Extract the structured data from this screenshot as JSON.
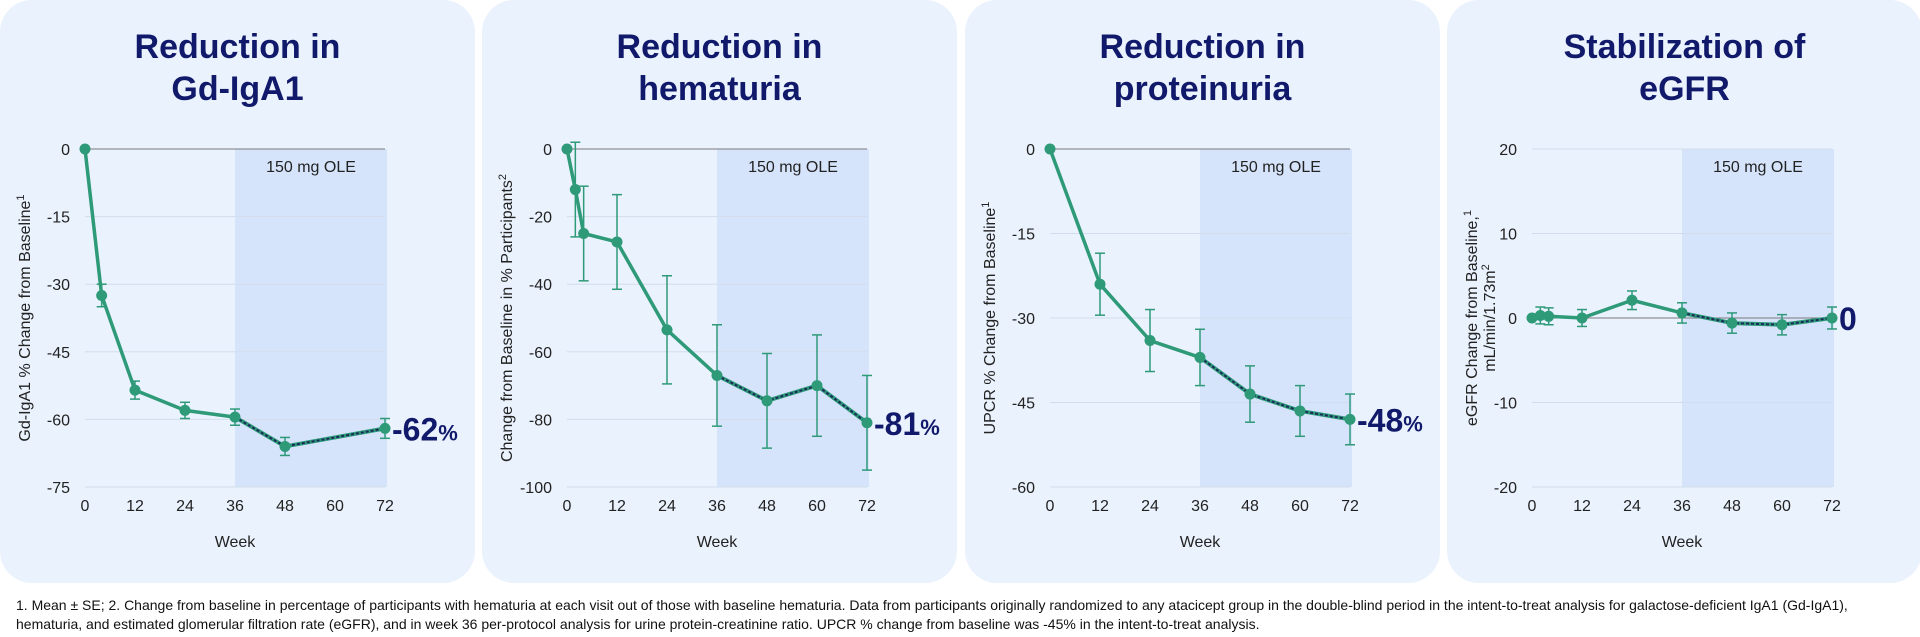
{
  "colors": {
    "line": "#2e9a78",
    "dashed": "#1a2b5c",
    "ole_shade": "#d6e4fb",
    "title": "#11196b",
    "panel_bg": "#eaf2fd"
  },
  "footnote": "1. Mean ± SE; 2. Change from baseline in percentage of participants with hematuria at each visit out of those with baseline hematuria. Data from participants originally randomized to any atacicept group in the double-blind period in the intent-to-treat analysis for galactose-deficient IgA1 (Gd-IgA1), hematuria, and estimated glomerular filtration rate (eGFR), and in week 36 per-protocol analysis for urine protein-creatinine ratio. UPCR % change from baseline was -45% in the intent-to-treat analysis.",
  "chart_data": [
    {
      "type": "line",
      "title": "Reduction in\nGd-IgA1",
      "xlabel": "Week",
      "ylabel": "Gd-IgA1 % Change from Baseline",
      "ylabel_sup": "1",
      "xlim": [
        0,
        72
      ],
      "ylim": [
        -75,
        0
      ],
      "xticks": [
        0,
        12,
        24,
        36,
        48,
        60,
        72
      ],
      "yticks": [
        0,
        -15,
        -30,
        -45,
        -60,
        -75
      ],
      "ole_region": [
        36,
        72
      ],
      "ole_label": "150 mg OLE",
      "end_value": "-62",
      "end_unit": "%",
      "x": [
        0,
        4,
        12,
        24,
        36,
        48,
        72
      ],
      "y": [
        0,
        -32.5,
        -53.5,
        -58,
        -59.5,
        -66,
        -62
      ],
      "err": [
        0,
        2.5,
        2,
        1.8,
        1.8,
        2,
        2.2
      ]
    },
    {
      "type": "line",
      "title": "Reduction in\nhematuria",
      "xlabel": "Week",
      "ylabel": "Change from Baseline in % Participants",
      "ylabel_sup": "2",
      "xlim": [
        0,
        72
      ],
      "ylim": [
        -100,
        0
      ],
      "xticks": [
        0,
        12,
        24,
        36,
        48,
        60,
        72
      ],
      "yticks": [
        0,
        -20,
        -40,
        -60,
        -80,
        -100
      ],
      "ole_region": [
        36,
        72
      ],
      "ole_label": "150 mg OLE",
      "end_value": "-81",
      "end_unit": "%",
      "x": [
        0,
        2,
        4,
        12,
        24,
        36,
        48,
        60,
        72
      ],
      "y": [
        0,
        -12,
        -25,
        -27.5,
        -53.5,
        -67,
        -74.5,
        -70,
        -81
      ],
      "err": [
        0,
        14,
        14,
        14,
        16,
        15,
        14,
        15,
        14
      ]
    },
    {
      "type": "line",
      "title": "Reduction in\nproteinuria",
      "xlabel": "Week",
      "ylabel": "UPCR % Change from Baseline",
      "ylabel_sup": "1",
      "xlim": [
        0,
        72
      ],
      "ylim": [
        -60,
        0
      ],
      "xticks": [
        0,
        12,
        24,
        36,
        48,
        60,
        72
      ],
      "yticks": [
        0,
        -15,
        -30,
        -45,
        -60
      ],
      "ole_region": [
        36,
        72
      ],
      "ole_label": "150 mg OLE",
      "end_value": "-48",
      "end_unit": "%",
      "x": [
        0,
        12,
        24,
        36,
        48,
        60,
        72
      ],
      "y": [
        0,
        -24,
        -34,
        -37,
        -43.5,
        -46.5,
        -48
      ],
      "err": [
        0,
        5.5,
        5.5,
        5,
        5,
        4.5,
        4.5
      ]
    },
    {
      "type": "line",
      "title": "Stabilization of\neGFR",
      "xlabel": "Week",
      "ylabel": "eGFR Change from Baseline,",
      "ylabel_sup": "1",
      "ylabel2": "mL/min/1.73m",
      "ylabel2_sup": "2",
      "xlim": [
        0,
        72
      ],
      "ylim": [
        -20,
        20
      ],
      "xticks": [
        0,
        12,
        24,
        36,
        48,
        60,
        72
      ],
      "yticks": [
        20,
        10,
        0,
        -10,
        -20
      ],
      "ole_region": [
        36,
        72
      ],
      "ole_label": "150 mg OLE",
      "end_value": "0",
      "end_unit": "",
      "x": [
        0,
        2,
        4,
        12,
        24,
        36,
        48,
        60,
        72
      ],
      "y": [
        0,
        0.3,
        0.2,
        0,
        2.1,
        0.6,
        -0.6,
        -0.8,
        0
      ],
      "err": [
        0,
        1,
        1,
        1,
        1.1,
        1.2,
        1.2,
        1.2,
        1.3
      ]
    }
  ]
}
